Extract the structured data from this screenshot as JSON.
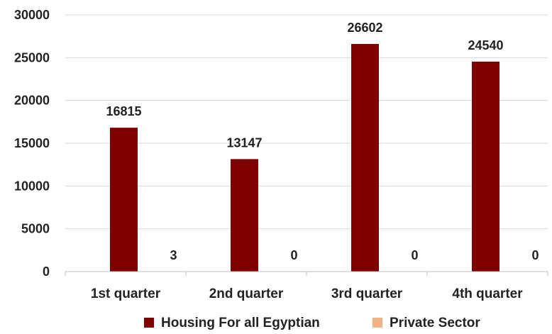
{
  "chart_data": {
    "type": "bar",
    "title": "",
    "xlabel": "",
    "ylabel": "",
    "categories": [
      "1st quarter",
      "2nd quarter",
      "3rd quarter",
      "4th quarter"
    ],
    "series": [
      {
        "name": "Housing For all Egyptian",
        "values": [
          16815,
          13147,
          26602,
          24540
        ],
        "color": "#7f0000"
      },
      {
        "name": "Private Sector",
        "values": [
          3,
          0,
          0,
          0
        ],
        "color": "#f4b183"
      }
    ],
    "ylim": [
      0,
      30000
    ],
    "yticks": [
      0,
      5000,
      10000,
      15000,
      20000,
      25000,
      30000
    ],
    "grid": true,
    "legend_position": "bottom"
  }
}
